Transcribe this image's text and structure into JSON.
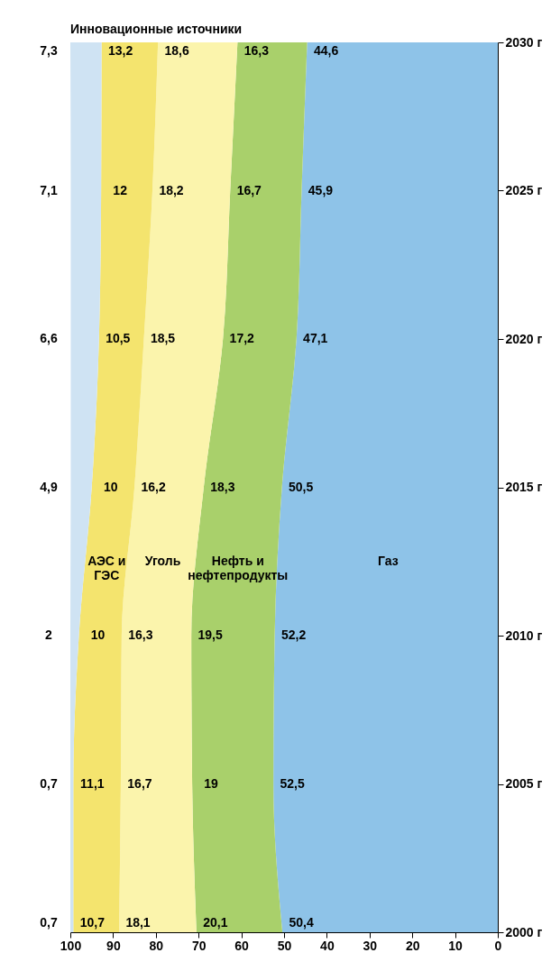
{
  "chart_data": {
    "type": "area",
    "stacked": true,
    "orientation": "horizontal",
    "x": [
      2000,
      2005,
      2010,
      2015,
      2020,
      2025,
      2030
    ],
    "ylim": [
      2000,
      2030
    ],
    "yticks": [
      {
        "value": 2000,
        "label": "2000 г"
      },
      {
        "value": 2005,
        "label": "2005 г"
      },
      {
        "value": 2010,
        "label": "2010 г"
      },
      {
        "value": 2015,
        "label": "2015 г"
      },
      {
        "value": 2020,
        "label": "2020 г"
      },
      {
        "value": 2025,
        "label": "2025 г"
      },
      {
        "value": 2030,
        "label": "2030 г"
      }
    ],
    "xlim": [
      100,
      0
    ],
    "xticks": [
      0,
      10,
      20,
      30,
      40,
      50,
      60,
      70,
      80,
      90,
      100
    ],
    "legend": false,
    "grid": false,
    "series": [
      {
        "name": "Газ",
        "color": "#8ec3e8",
        "values": [
          50.4,
          52.5,
          52.2,
          50.5,
          47.1,
          45.9,
          44.6
        ],
        "value_labels": [
          "50,4",
          "52,5",
          "52,2",
          "50,5",
          "47,1",
          "45,9",
          "44,6"
        ]
      },
      {
        "name": "Нефть и нефтепродукты",
        "color": "#a9d06b",
        "values": [
          20.1,
          19,
          19.5,
          18.3,
          17.2,
          16.7,
          16.3
        ],
        "value_labels": [
          "20,1",
          "19",
          "19,5",
          "18,3",
          "17,2",
          "16,7",
          "16,3"
        ]
      },
      {
        "name": "Уголь",
        "color": "#fbf4ac",
        "values": [
          18.1,
          16.7,
          16.3,
          16.2,
          18.5,
          18.2,
          18.6
        ],
        "value_labels": [
          "18,1",
          "16,7",
          "16,3",
          "16,2",
          "18,5",
          "18,2",
          "18,6"
        ]
      },
      {
        "name": "АЭС и ГЭС",
        "color": "#f4e46e",
        "values": [
          10.7,
          11.1,
          10,
          10,
          10.5,
          12,
          13.2
        ],
        "value_labels": [
          "10,7",
          "11,1",
          "10",
          "10",
          "10,5",
          "12",
          "13,2"
        ]
      },
      {
        "name": "Инновационные источники",
        "color": "#cfe3f3",
        "values": [
          0.7,
          0.7,
          2,
          4.9,
          6.6,
          7.1,
          7.3
        ],
        "value_labels": [
          "0,7",
          "0,7",
          "2",
          "4,9",
          "6,6",
          "7,1",
          "7,3"
        ]
      }
    ]
  }
}
